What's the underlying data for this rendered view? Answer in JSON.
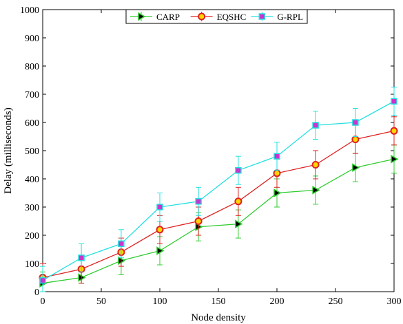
{
  "chart_data": {
    "type": "line",
    "title": "",
    "xlabel": "Node density",
    "ylabel": "Delay (milliseconds)",
    "xlim": [
      0,
      300
    ],
    "ylim": [
      0,
      1000
    ],
    "xticks": [
      0,
      50,
      100,
      150,
      200,
      250,
      300
    ],
    "yticks": [
      0,
      100,
      200,
      300,
      400,
      500,
      600,
      700,
      800,
      900,
      1000
    ],
    "grid": false,
    "legend_position": "top-center",
    "x": [
      0,
      33,
      67,
      100,
      133,
      167,
      200,
      233,
      267,
      300
    ],
    "series": [
      {
        "name": "CARP",
        "color": "#2ecc2e",
        "marker": "triangle-right",
        "marker_fill": "#000000",
        "values": [
          30,
          50,
          110,
          145,
          230,
          240,
          350,
          360,
          440,
          470
        ],
        "error": [
          40,
          20,
          50,
          50,
          50,
          50,
          50,
          50,
          50,
          50
        ]
      },
      {
        "name": "EQSHC",
        "color": "#e02020",
        "marker": "circle",
        "marker_fill": "#ffd700",
        "values": [
          50,
          80,
          140,
          220,
          250,
          320,
          420,
          450,
          540,
          570
        ],
        "error": [
          50,
          50,
          50,
          50,
          50,
          50,
          50,
          50,
          50,
          50
        ]
      },
      {
        "name": "G-RPL",
        "color": "#22e0e0",
        "marker": "square",
        "marker_fill": "#cc33cc",
        "values": [
          40,
          120,
          170,
          300,
          320,
          430,
          480,
          590,
          600,
          675
        ],
        "error": [
          50,
          50,
          50,
          50,
          50,
          50,
          50,
          50,
          50,
          50
        ]
      }
    ]
  }
}
